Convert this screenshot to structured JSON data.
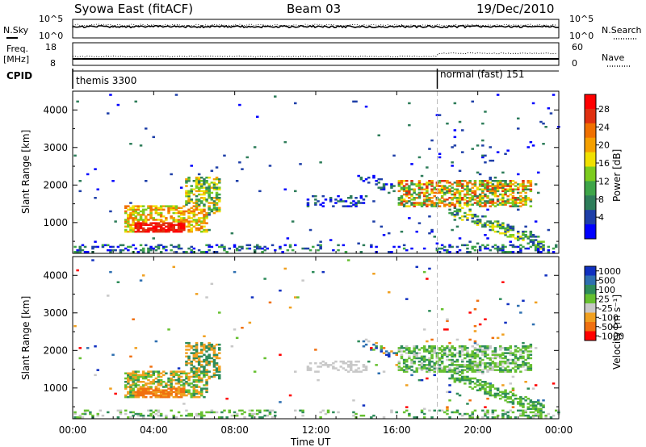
{
  "header": {
    "station": "Syowa East (fitACF)",
    "beam": "Beam 03",
    "date": "19/Dec/2010"
  },
  "top_panels": {
    "nsky_label": "N.Sky",
    "nsky_ticks": [
      "10^5",
      "10^0"
    ],
    "nsearch_label": "N.Search",
    "nsearch_ticks": [
      "10^5",
      "10^0"
    ],
    "freq_label_1": "Freq.",
    "freq_label_2": "[MHz]",
    "freq_ticks": [
      "18",
      "8"
    ],
    "nave_label": "Nave",
    "nave_ticks": [
      "60",
      "0"
    ],
    "cpid_label": "CPID",
    "cpid_segments": [
      {
        "name": "themis 3300",
        "start_hour": 0
      },
      {
        "name": "normal (fast) 151",
        "start_hour": 18
      }
    ]
  },
  "x_axis": {
    "title": "Time UT",
    "ticks": [
      "00:00",
      "04:00",
      "08:00",
      "12:00",
      "16:00",
      "20:00",
      "00:00"
    ],
    "range_hours": [
      0,
      24
    ]
  },
  "power_panel": {
    "ylabel": "Slant Range [km]",
    "yticks": [
      "1000",
      "2000",
      "3000",
      "4000"
    ],
    "colorbar_label": "Power [dB]",
    "colorbar_ticks": [
      "4",
      "8",
      "12",
      "16",
      "20",
      "24",
      "28"
    ],
    "colorbar_colors": [
      "#0000ff",
      "#1e3fa8",
      "#2e7d5a",
      "#3ea548",
      "#7ccc1e",
      "#f0e000",
      "#f5a000",
      "#f07000",
      "#e03010",
      "#ff0000"
    ]
  },
  "velocity_panel": {
    "ylabel": "Slant Range [km]",
    "yticks": [
      "1000",
      "2000",
      "3000",
      "4000"
    ],
    "colorbar_label": "Velocity [m s⁻¹]",
    "colorbar_ticks": [
      "1000",
      "500",
      "100",
      "25",
      "-25",
      "-100",
      "-500",
      "-1000"
    ],
    "colorbar_colors": [
      "#1030c0",
      "#2e6fb0",
      "#2e8c5a",
      "#66c030",
      "#c8c8c8",
      "#f0a020",
      "#f07010",
      "#ff0000"
    ]
  },
  "chart_data": [
    {
      "type": "heatmap",
      "title": "Power",
      "ylabel": "Slant Range [km]",
      "xlabel": "Time UT",
      "ylim": [
        180,
        4500
      ],
      "xlim": [
        0,
        24
      ],
      "features": [
        {
          "label": "near-range band",
          "t": [
            0,
            24
          ],
          "r": [
            200,
            400
          ],
          "power_db": 6
        },
        {
          "label": "dense patch",
          "t": [
            2.5,
            6.5
          ],
          "r": [
            700,
            1400
          ],
          "power_db": 26
        },
        {
          "label": "evening band",
          "t": [
            16,
            22.5
          ],
          "r": [
            1400,
            2100
          ],
          "power_db": 22
        },
        {
          "label": "descending trace",
          "t": [
            18.5,
            23
          ],
          "r": [
            500,
            1300
          ],
          "power_db": 16
        }
      ]
    },
    {
      "type": "heatmap",
      "title": "Velocity",
      "ylabel": "Slant Range [km]",
      "xlabel": "Time UT",
      "ylim": [
        180,
        4500
      ],
      "xlim": [
        0,
        24
      ],
      "features": [
        {
          "label": "morning patch",
          "t": [
            2.5,
            6.5
          ],
          "r": [
            700,
            1400
          ],
          "velocity_ms": -300
        },
        {
          "label": "evening band",
          "t": [
            17,
            22.5
          ],
          "r": [
            1400,
            2100
          ],
          "velocity_ms": 60
        },
        {
          "label": "descending trace",
          "t": [
            18.5,
            23
          ],
          "r": [
            500,
            1300
          ],
          "velocity_ms": 150
        }
      ]
    }
  ]
}
